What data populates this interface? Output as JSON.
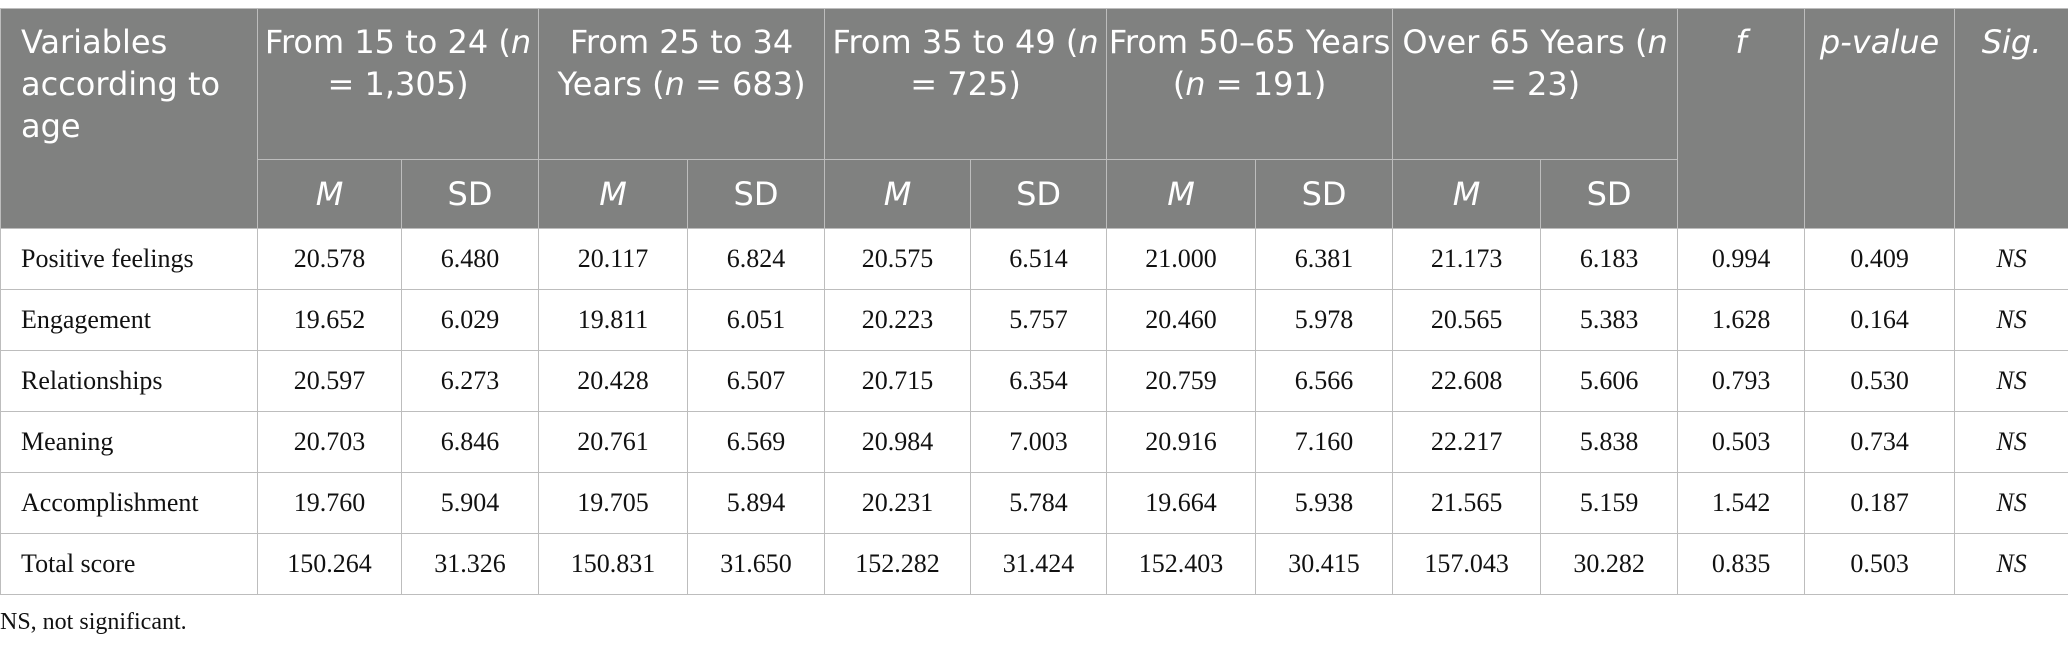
{
  "header": {
    "variables": "Variables according to age",
    "groups": [
      {
        "label": "From 15 to 24 ",
        "n": "1,305"
      },
      {
        "label": "From 25 to 34 Years ",
        "n": "683"
      },
      {
        "label": "From 35 to 49 ",
        "n": "725"
      },
      {
        "label": "From 50–65 Years ",
        "n": "191"
      },
      {
        "label": "Over 65 Years ",
        "n": "23"
      }
    ],
    "n_symbol": "n",
    "n_eq": " = ",
    "f": "f",
    "p_value": "p-value",
    "sig": "Sig.",
    "m": "M",
    "sd": "SD"
  },
  "rows": [
    {
      "label": "Positive feelings",
      "values": [
        "20.578",
        "6.480",
        "20.117",
        "6.824",
        "20.575",
        "6.514",
        "21.000",
        "6.381",
        "21.173",
        "6.183",
        "0.994",
        "0.409"
      ],
      "sig": "NS"
    },
    {
      "label": "Engagement",
      "values": [
        "19.652",
        "6.029",
        "19.811",
        "6.051",
        "20.223",
        "5.757",
        "20.460",
        "5.978",
        "20.565",
        "5.383",
        "1.628",
        "0.164"
      ],
      "sig": "NS"
    },
    {
      "label": "Relationships",
      "values": [
        "20.597",
        "6.273",
        "20.428",
        "6.507",
        "20.715",
        "6.354",
        "20.759",
        "6.566",
        "22.608",
        "5.606",
        "0.793",
        "0.530"
      ],
      "sig": "NS"
    },
    {
      "label": "Meaning",
      "values": [
        "20.703",
        "6.846",
        "20.761",
        "6.569",
        "20.984",
        "7.003",
        "20.916",
        "7.160",
        "22.217",
        "5.838",
        "0.503",
        "0.734"
      ],
      "sig": "NS"
    },
    {
      "label": "Accomplishment",
      "values": [
        "19.760",
        "5.904",
        "19.705",
        "5.894",
        "20.231",
        "5.784",
        "19.664",
        "5.938",
        "21.565",
        "5.159",
        "1.542",
        "0.187"
      ],
      "sig": "NS"
    },
    {
      "label": "Total score",
      "values": [
        "150.264",
        "31.326",
        "150.831",
        "31.650",
        "152.282",
        "31.424",
        "152.403",
        "30.415",
        "157.043",
        "30.282",
        "0.835",
        "0.503"
      ],
      "sig": "NS"
    }
  ],
  "note": "NS, not significant."
}
